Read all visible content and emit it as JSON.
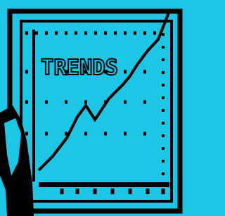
{
  "title": "TRENDS"
}
